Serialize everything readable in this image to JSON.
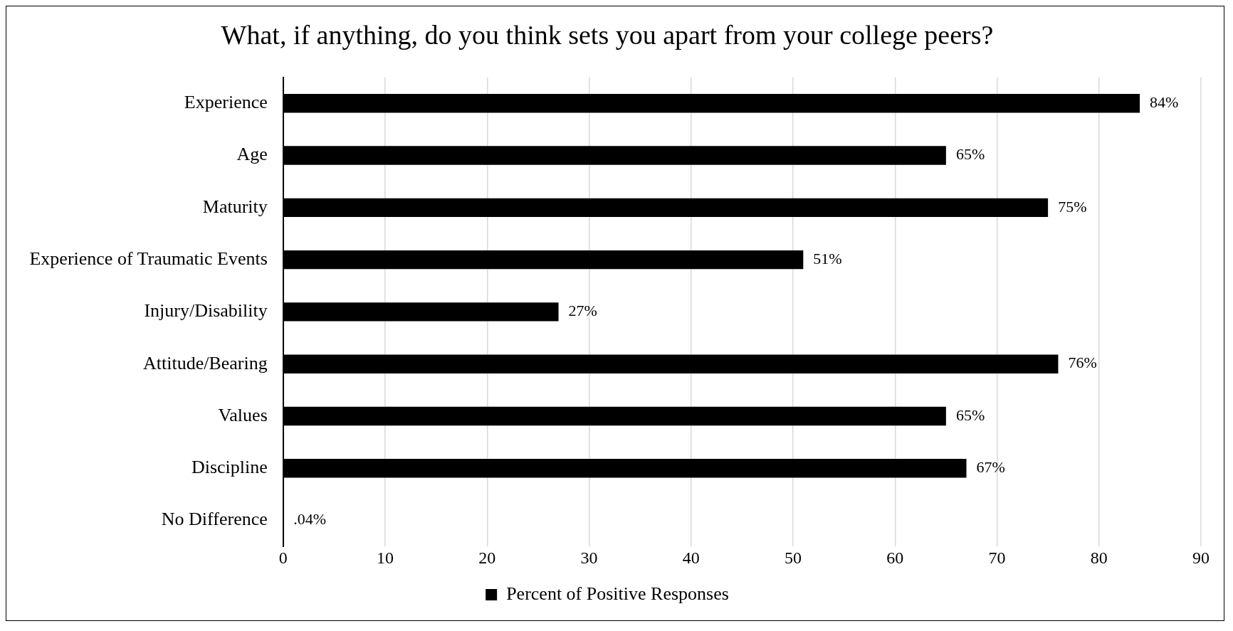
{
  "chart_data": {
    "type": "bar",
    "orientation": "horizontal",
    "title": "What, if anything, do you think sets you apart from your college peers?",
    "categories": [
      "Experience",
      "Age",
      "Maturity",
      "Experience of Traumatic Events",
      "Injury/Disability",
      "Attitude/Bearing",
      "Values",
      "Discipline",
      "No Difference"
    ],
    "series": [
      {
        "name": "Percent of Positive Responses",
        "color": "#000000",
        "values": [
          84,
          65,
          75,
          51,
          27,
          76,
          65,
          67,
          0.04
        ],
        "value_labels": [
          "84%",
          "65%",
          "75%",
          "51%",
          "27%",
          "76%",
          "65%",
          "67%",
          ".04%"
        ]
      }
    ],
    "xlim": [
      0,
      90
    ],
    "xticks": [
      0,
      10,
      20,
      30,
      40,
      50,
      60,
      70,
      80,
      90
    ],
    "grid": "x",
    "legend": "bottom"
  }
}
